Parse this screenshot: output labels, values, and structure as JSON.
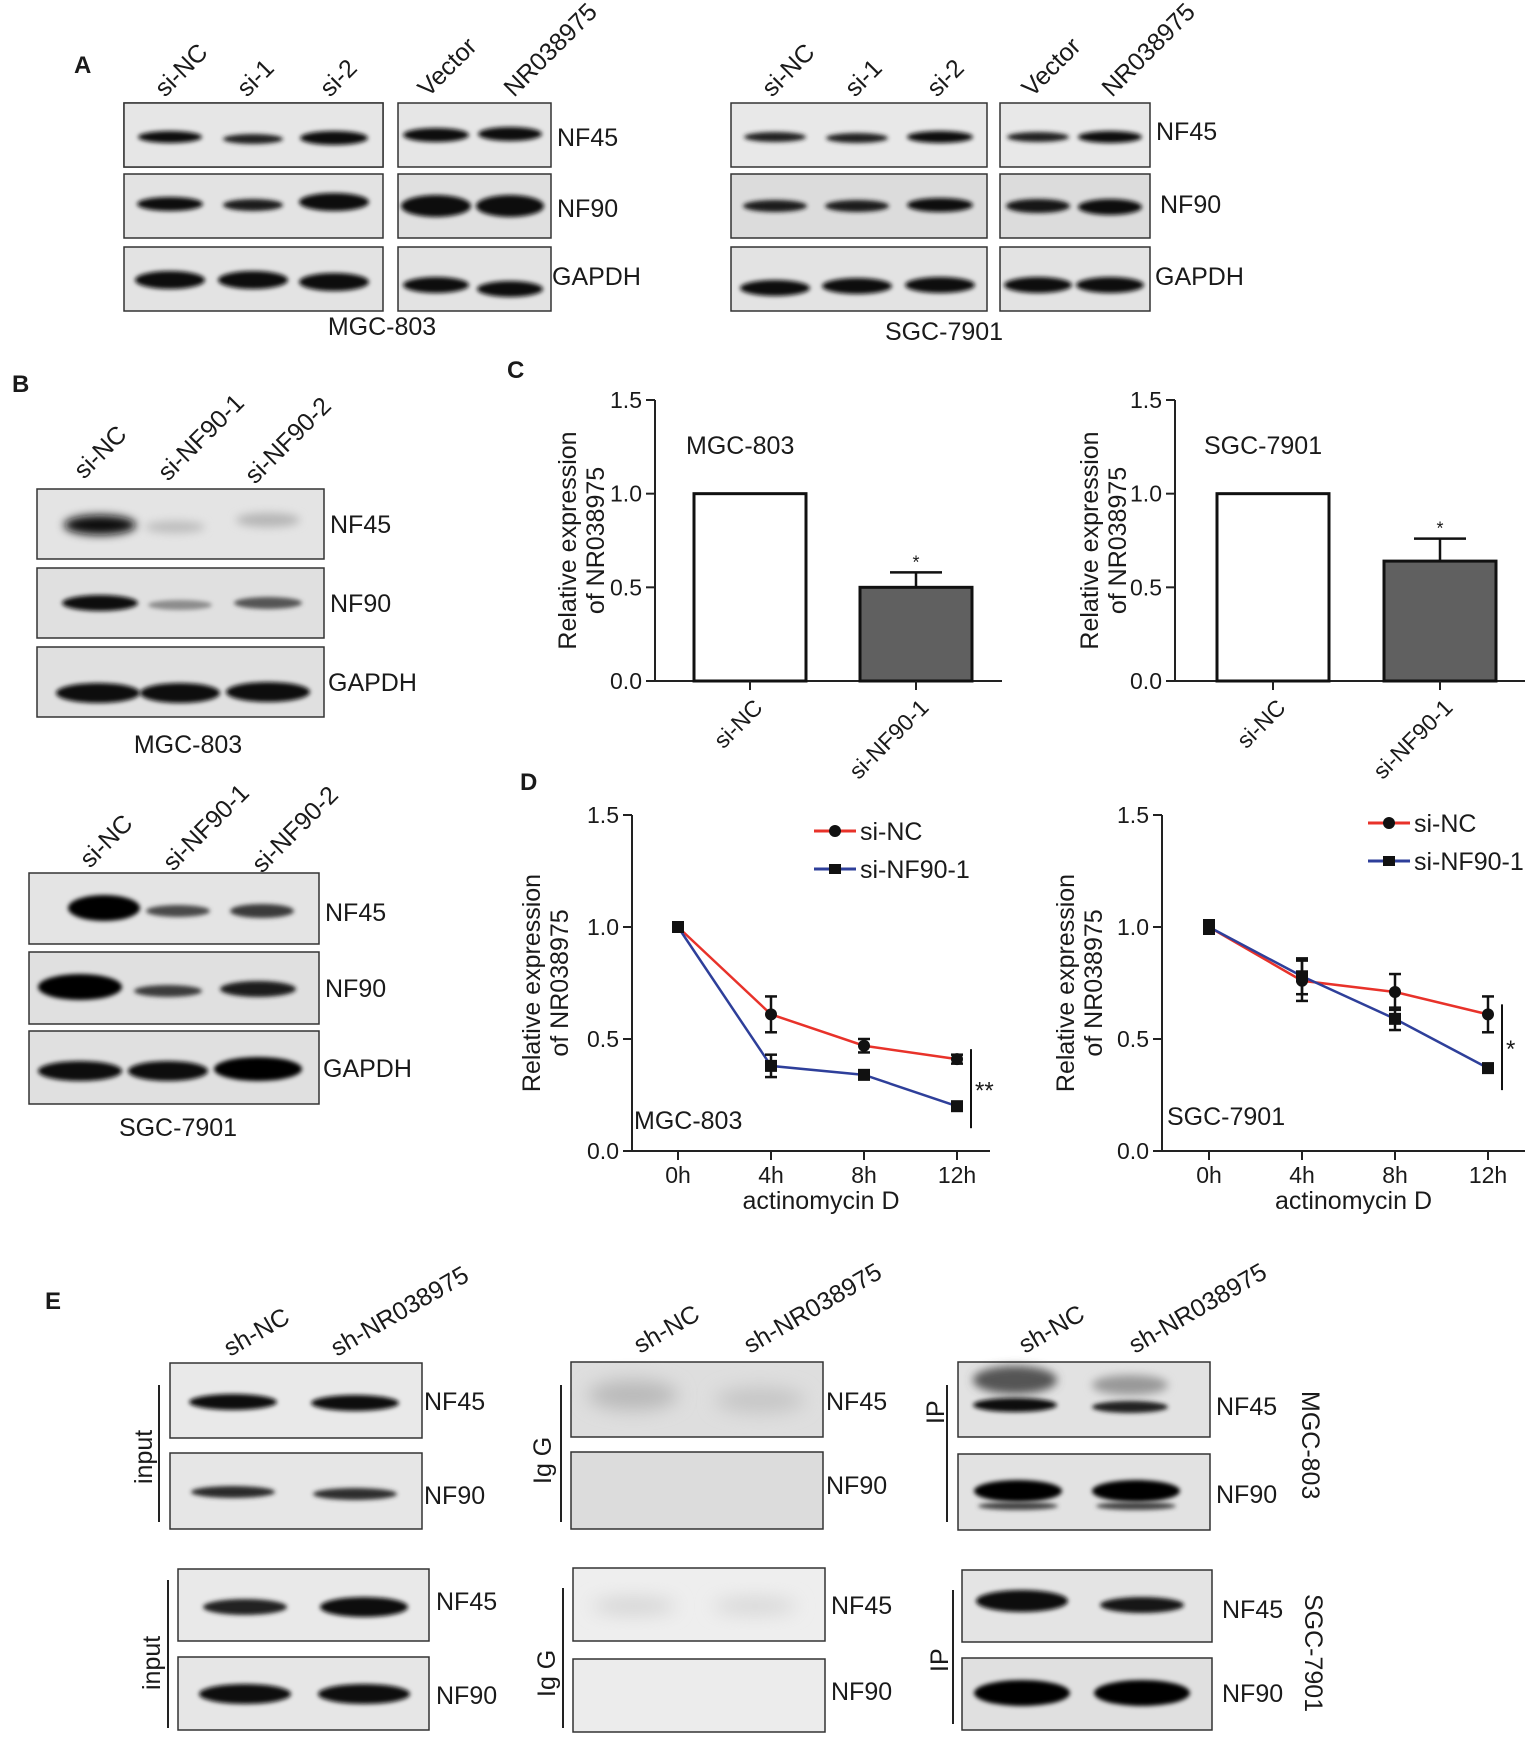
{
  "panels": {
    "A": {
      "letter": "A",
      "left": {
        "cell_line": "MGC-803",
        "lanes_group1": [
          "si-NC",
          "si-1",
          "si-2"
        ],
        "lanes_group2": [
          "Vector",
          "NR038975"
        ],
        "proteins": [
          "NF45",
          "NF90",
          "GAPDH"
        ]
      },
      "right": {
        "cell_line": "SGC-7901",
        "lanes_group1": [
          "si-NC",
          "si-1",
          "si-2"
        ],
        "lanes_group2": [
          "Vector",
          "NR038975"
        ],
        "proteins": [
          "NF45",
          "NF90",
          "GAPDH"
        ]
      }
    },
    "B": {
      "letter": "B",
      "top": {
        "cell_line": "MGC-803",
        "lanes": [
          "si-NC",
          "si-NF90-1",
          "si-NF90-2"
        ],
        "proteins": [
          "NF45",
          "NF90",
          "GAPDH"
        ]
      },
      "bottom": {
        "cell_line": "SGC-7901",
        "lanes": [
          "si-NC",
          "si-NF90-1",
          "si-NF90-2"
        ],
        "proteins": [
          "NF45",
          "NF90",
          "GAPDH"
        ]
      }
    },
    "C": {
      "letter": "C"
    },
    "D": {
      "letter": "D"
    },
    "E": {
      "letter": "E",
      "lanes": [
        "sh-NC",
        "sh-NR038975"
      ],
      "proteins": [
        "NF45",
        "NF90"
      ],
      "group_labels": {
        "input": "input",
        "igg": "Ig G",
        "ip": "IP"
      },
      "cell_lines": [
        "MGC-803",
        "SGC-7901"
      ]
    }
  },
  "chart_data": [
    {
      "type": "bar",
      "panel": "C",
      "title": "MGC-803",
      "categories": [
        "si-NC",
        "si-NF90-1"
      ],
      "values": [
        1.0,
        0.5
      ],
      "errors": [
        0,
        0.08
      ],
      "significance": [
        "",
        "*"
      ],
      "ylabel_lines": [
        "Relative expression",
        "of NR038975"
      ],
      "yticks": [
        "0.0",
        "0.5",
        "1.0",
        "1.5"
      ],
      "ylim": [
        0,
        1.5
      ],
      "bar_colors": [
        "#ffffff",
        "#606060"
      ]
    },
    {
      "type": "bar",
      "panel": "C",
      "title": "SGC-7901",
      "categories": [
        "si-NC",
        "si-NF90-1"
      ],
      "values": [
        1.0,
        0.64
      ],
      "errors": [
        0,
        0.12
      ],
      "significance": [
        "",
        "*"
      ],
      "ylabel_lines": [
        "Relative expression",
        "of NR038975"
      ],
      "yticks": [
        "0.0",
        "0.5",
        "1.0",
        "1.5"
      ],
      "ylim": [
        0,
        1.5
      ],
      "bar_colors": [
        "#ffffff",
        "#606060"
      ]
    },
    {
      "type": "line",
      "panel": "D",
      "annotation": "MGC-803",
      "x": [
        "0h",
        "4h",
        "8h",
        "12h"
      ],
      "series": [
        {
          "name": "si-NC",
          "values": [
            1.0,
            0.61,
            0.47,
            0.41
          ],
          "errors": [
            0.01,
            0.08,
            0.03,
            0.02
          ],
          "color": "#e8322a",
          "marker": "circle"
        },
        {
          "name": "si-NF90-1",
          "values": [
            1.0,
            0.38,
            0.34,
            0.2
          ],
          "errors": [
            0.01,
            0.05,
            0.02,
            0.02
          ],
          "color": "#2e3f9a",
          "marker": "square"
        }
      ],
      "significance": "**",
      "xlabel": "actinomycin D",
      "ylabel_lines": [
        "Relative expression",
        "of NR038975"
      ],
      "yticks": [
        "0.0",
        "0.5",
        "1.0",
        "1.5"
      ],
      "ylim": [
        0,
        1.5
      ],
      "legend": "top-right"
    },
    {
      "type": "line",
      "panel": "D",
      "annotation": "SGC-7901",
      "x": [
        "0h",
        "4h",
        "8h",
        "12h"
      ],
      "series": [
        {
          "name": "si-NC",
          "values": [
            1.0,
            0.76,
            0.71,
            0.61
          ],
          "errors": [
            0.03,
            0.09,
            0.08,
            0.08
          ],
          "color": "#e8322a",
          "marker": "circle"
        },
        {
          "name": "si-NF90-1",
          "values": [
            1.0,
            0.78,
            0.59,
            0.37
          ],
          "errors": [
            0.03,
            0.08,
            0.05,
            0.02
          ],
          "color": "#2e3f9a",
          "marker": "square"
        }
      ],
      "significance": "*",
      "xlabel": "actinomycin D",
      "ylabel_lines": [
        "Relative expression",
        "of NR038975"
      ],
      "yticks": [
        "0.0",
        "0.5",
        "1.0",
        "1.5"
      ],
      "ylim": [
        0,
        1.5
      ],
      "legend": "top-right"
    }
  ]
}
